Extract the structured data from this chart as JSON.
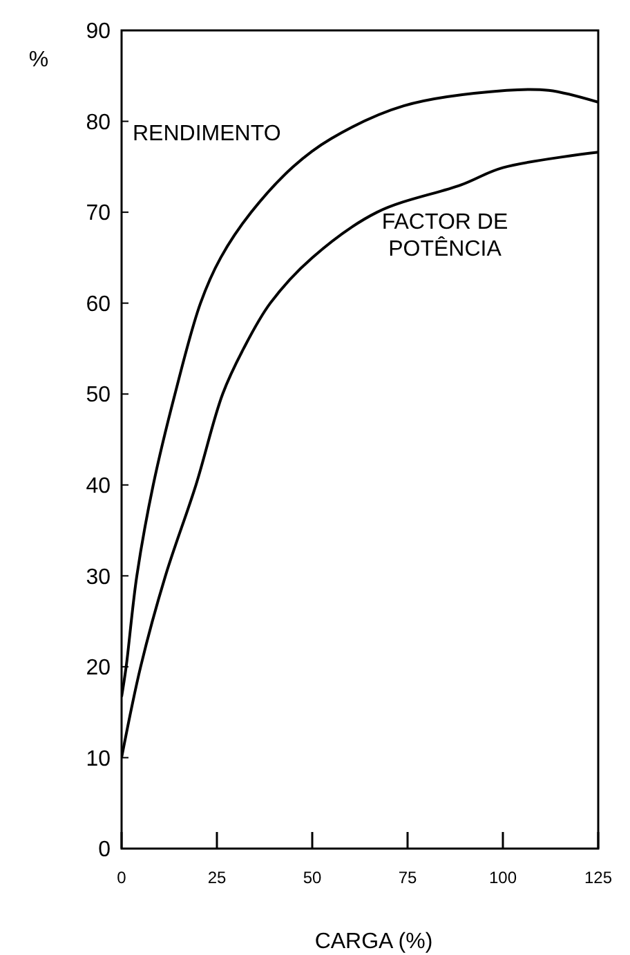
{
  "chart_data": {
    "type": "line",
    "xlabel": "CARGA (%)",
    "ylabel": "%",
    "xlim": [
      0,
      125
    ],
    "xticks": [
      0,
      25,
      50,
      75,
      100,
      125
    ],
    "ylim": [
      0,
      90
    ],
    "yticks": [
      0,
      10,
      20,
      30,
      40,
      50,
      60,
      70,
      80,
      90
    ],
    "grid": false,
    "series": [
      {
        "name": "RENDIMENTO",
        "color": "#000000",
        "x": [
          0,
          1.2,
          4,
          8.3,
          14,
          20.7,
          26,
          34,
          45,
          55,
          74,
          101,
          112,
          125
        ],
        "values": [
          16.7,
          20,
          30,
          40,
          50,
          60,
          65,
          70,
          75,
          78.1,
          81.7,
          83.4,
          83.4,
          82.1
        ]
      },
      {
        "name": "FACTOR DE POTÊNCIA",
        "color": "#000000",
        "x": [
          0,
          5,
          11.5,
          19.5,
          26.5,
          32,
          39,
          50,
          67,
          89,
          100,
          125
        ],
        "values": [
          10,
          20,
          30,
          40,
          50,
          55,
          60,
          65,
          70,
          73,
          74.9,
          76.6
        ]
      }
    ]
  }
}
